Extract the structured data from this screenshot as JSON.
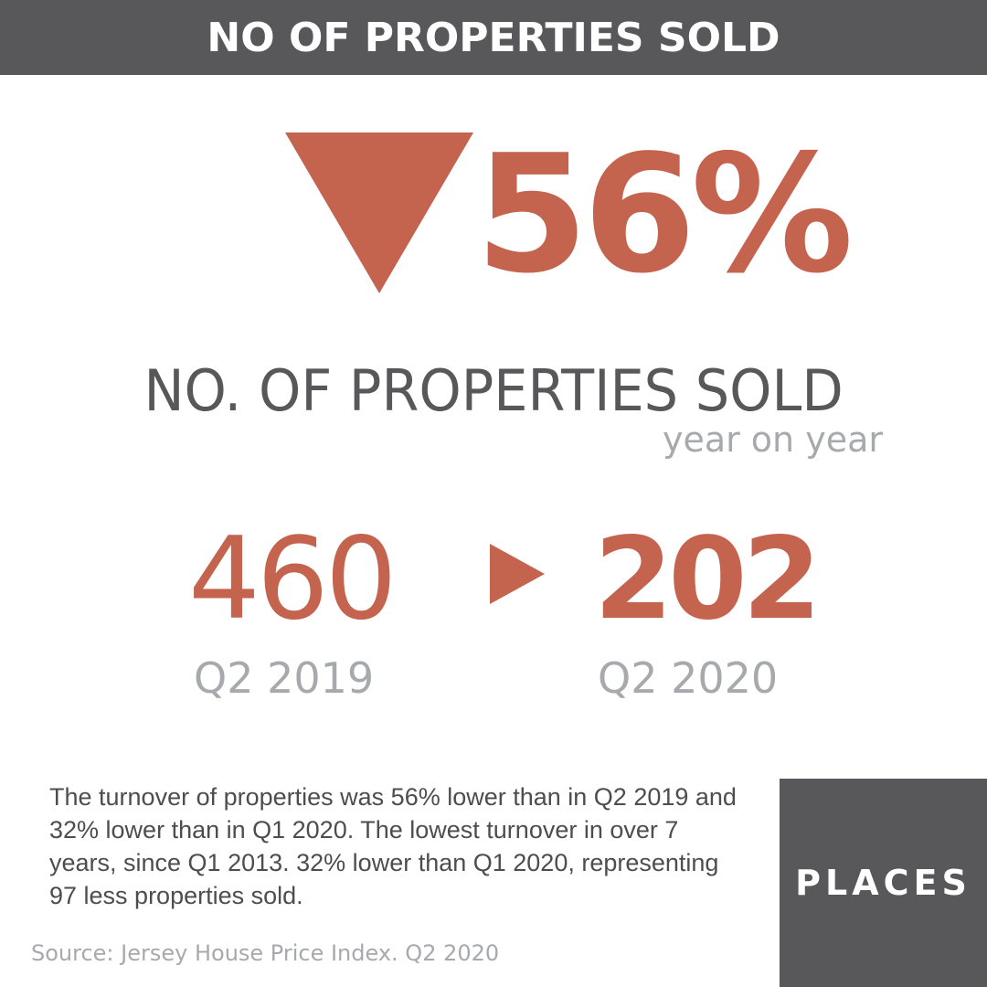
{
  "header": {
    "title": "NO OF PROPERTIES SOLD"
  },
  "stat": {
    "change_percent": "56%",
    "direction": "down",
    "direction_icon": "down-triangle-icon"
  },
  "headline": "NO. OF PROPERTIES SOLD",
  "subtitle": "year on year",
  "comparison": {
    "before_value": "460",
    "before_period": "Q2 2019",
    "arrow_icon": "right-triangle-icon",
    "after_value": "202",
    "after_period": "Q2 2020"
  },
  "body_text": "The turnover of properties was 56% lower than in Q2 2019 and 32% lower than in Q1 2020. The lowest turnover in over 7 years, since Q1 2013. 32% lower than Q1 2020, representing 97 less properties sold.",
  "source": "Source: Jersey House Price Index. Q2 2020",
  "brand": {
    "name": "PLACES"
  },
  "colors": {
    "accent": "#c4644f",
    "bar_gray": "#58585a",
    "text_gray": "#58585a",
    "muted_gray": "#a7a9ac",
    "body_text": "#4d4d4f",
    "white": "#ffffff"
  }
}
